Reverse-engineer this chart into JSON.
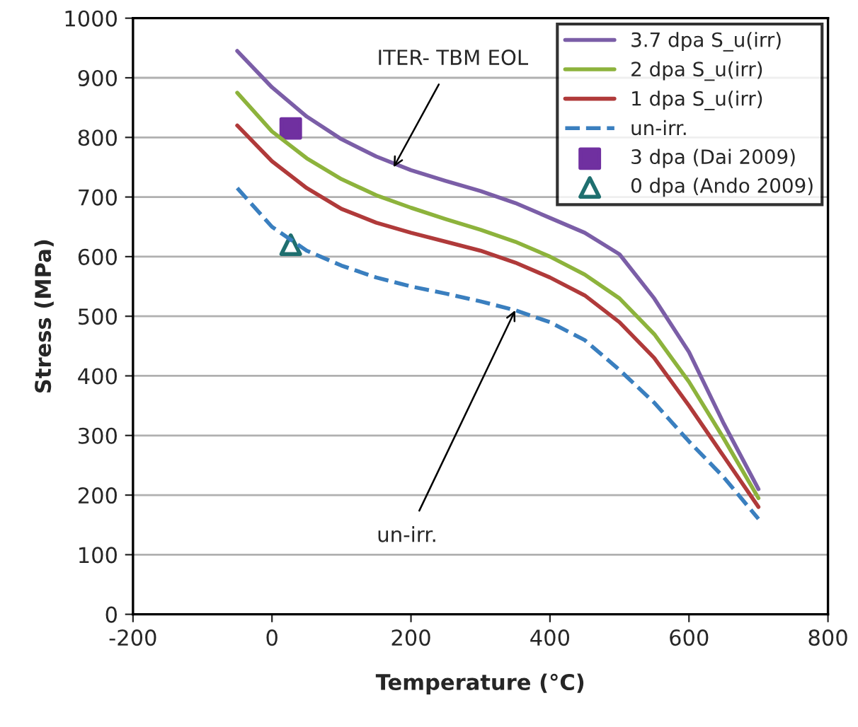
{
  "chart_data": {
    "type": "line",
    "xlabel": "Temperature (°C)",
    "ylabel": "Stress (MPa)",
    "xlim": [
      -200,
      800
    ],
    "ylim": [
      0,
      1000
    ],
    "xticks": [
      -200,
      0,
      200,
      400,
      600,
      800
    ],
    "yticks": [
      0,
      100,
      200,
      300,
      400,
      500,
      600,
      700,
      800,
      900,
      1000
    ],
    "grid": "y",
    "legend": "top right",
    "series": [
      {
        "name": "3.7 dpa S_u(irr)",
        "color": "#7b5ea7",
        "line_style": "solid",
        "x": [
          -50,
          0,
          50,
          100,
          150,
          200,
          250,
          300,
          350,
          400,
          450,
          500,
          550,
          600,
          650,
          700
        ],
        "values": [
          945,
          884,
          835,
          797,
          768,
          745,
          727,
          710,
          690,
          665,
          640,
          604,
          530,
          440,
          320,
          210
        ]
      },
      {
        "name": "2 dpa S_u(irr)",
        "color": "#8db33c",
        "line_style": "solid",
        "x": [
          -50,
          0,
          50,
          100,
          150,
          200,
          250,
          300,
          350,
          400,
          450,
          500,
          550,
          600,
          650,
          700
        ],
        "values": [
          875,
          810,
          765,
          730,
          703,
          682,
          663,
          645,
          625,
          600,
          570,
          530,
          470,
          390,
          295,
          195
        ]
      },
      {
        "name": "1 dpa S_u(irr)",
        "color": "#b03a3a",
        "line_style": "solid",
        "x": [
          -50,
          0,
          50,
          100,
          150,
          200,
          250,
          300,
          350,
          400,
          450,
          500,
          550,
          600,
          650,
          700
        ],
        "values": [
          820,
          760,
          715,
          680,
          657,
          640,
          625,
          610,
          590,
          565,
          535,
          490,
          430,
          350,
          265,
          180
        ]
      },
      {
        "name": "un-irr.",
        "color": "#3a7fbf",
        "line_style": "dashed",
        "x": [
          -50,
          0,
          50,
          100,
          150,
          200,
          250,
          300,
          350,
          400,
          450,
          500,
          550,
          600,
          650,
          700
        ],
        "values": [
          715,
          650,
          610,
          585,
          565,
          550,
          538,
          525,
          510,
          490,
          460,
          410,
          355,
          290,
          230,
          160
        ]
      },
      {
        "name": "3 dpa (Dai 2009)",
        "type": "scatter",
        "marker": "square",
        "color": "#7030a0",
        "x": [
          27
        ],
        "values": [
          815
        ]
      },
      {
        "name": "0 dpa (Ando 2009)",
        "type": "scatter",
        "marker": "triangle",
        "color": "#1f6f6f",
        "x": [
          27
        ],
        "values": [
          620
        ]
      }
    ],
    "annotations": [
      {
        "text": "ITER- TBM EOL",
        "x": 175,
        "y": 750
      },
      {
        "text": "un-irr.",
        "x": 350,
        "y": 510
      }
    ]
  }
}
